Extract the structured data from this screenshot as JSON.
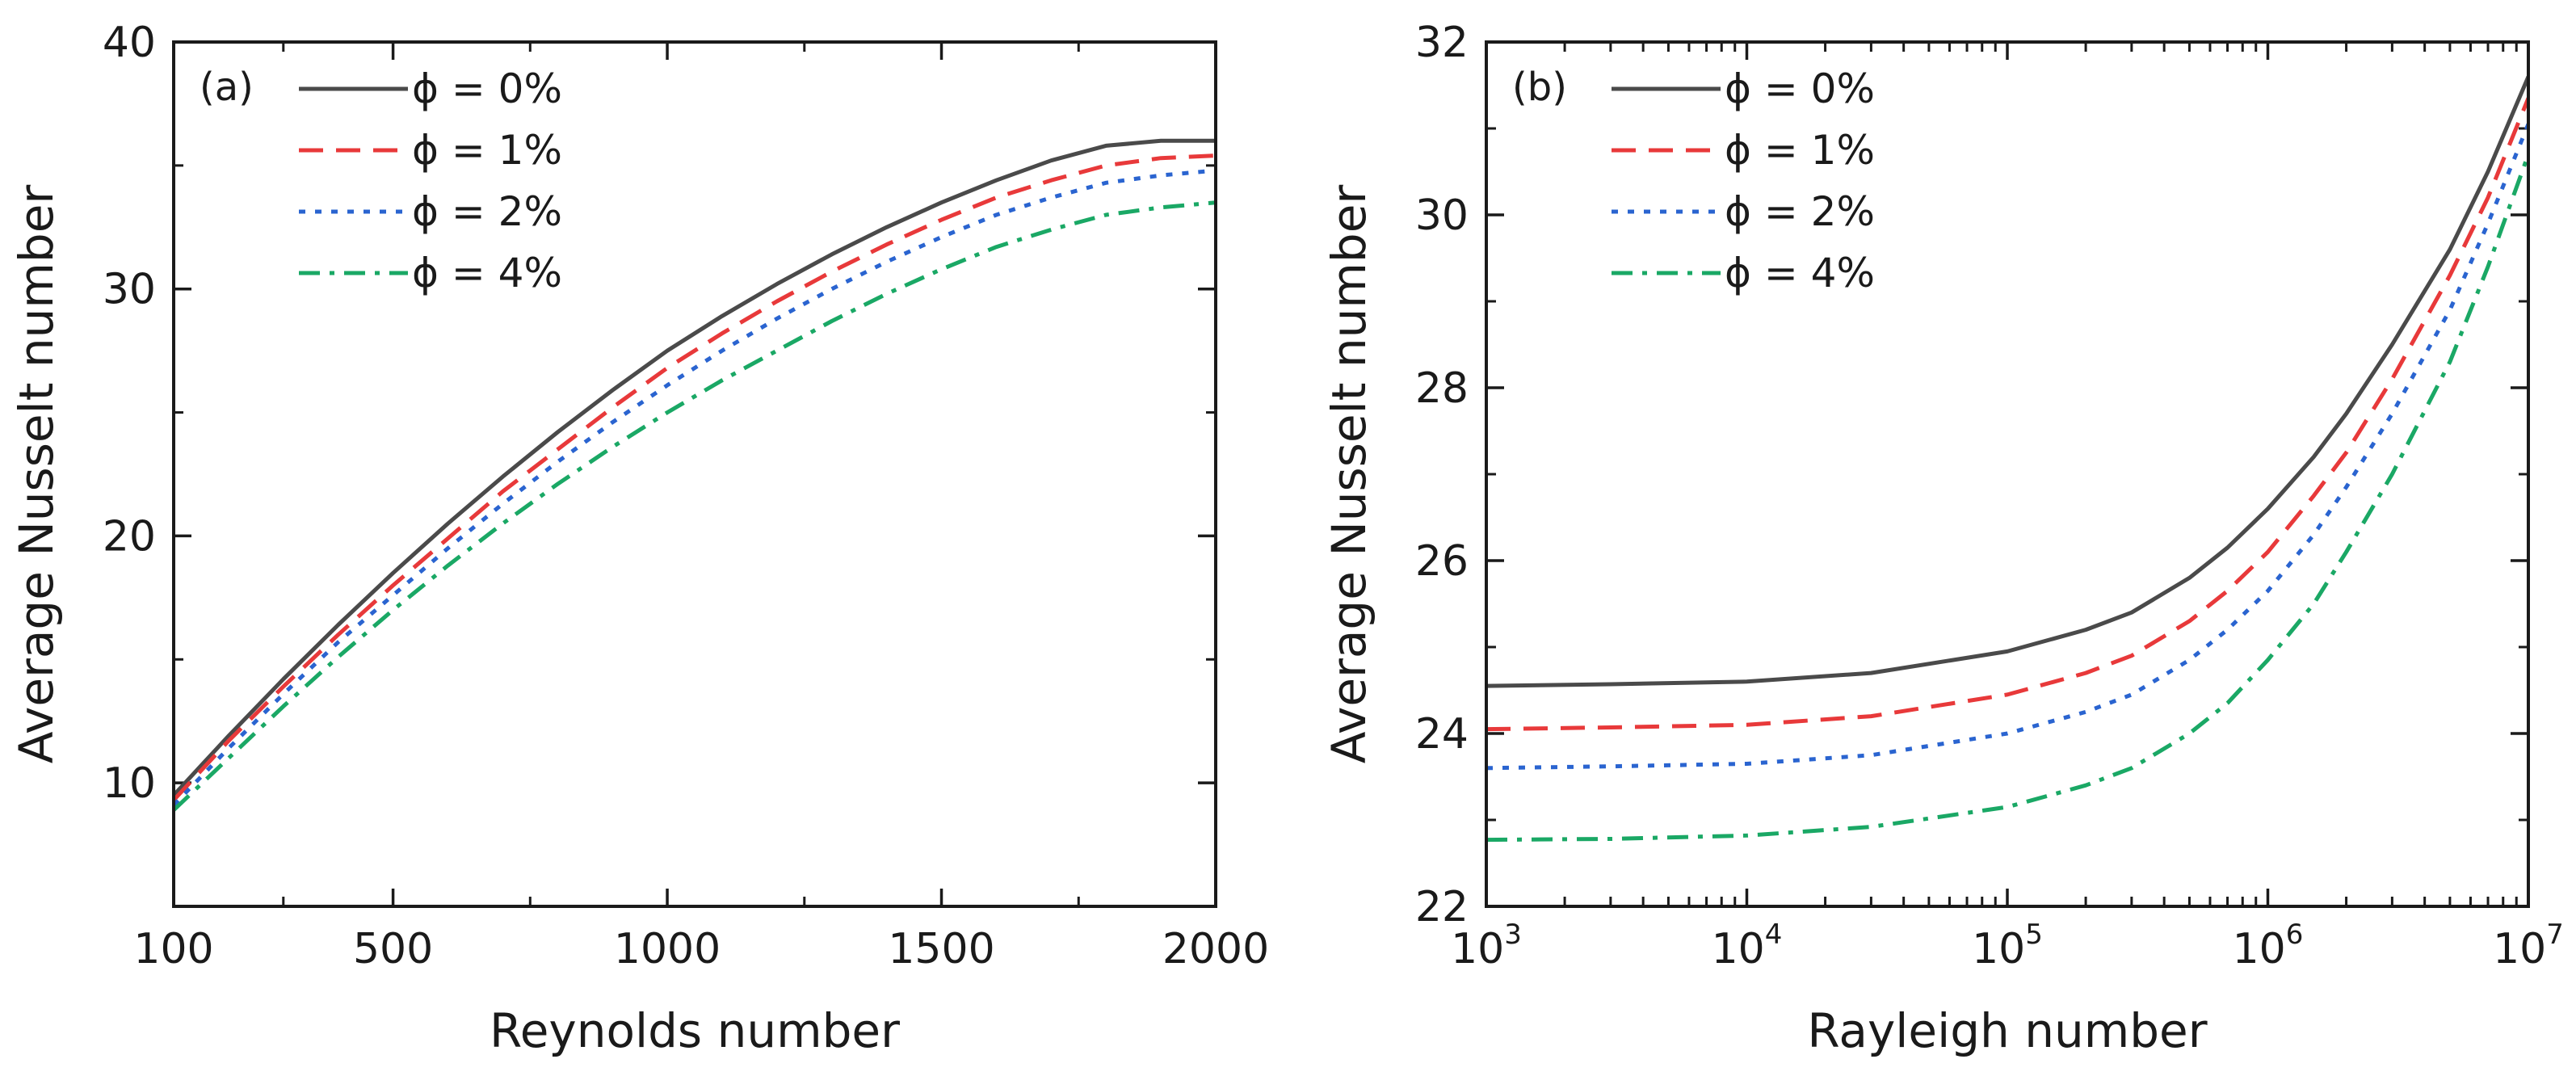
{
  "chart_data": [
    {
      "type": "line",
      "panel_label": "(a)",
      "xlabel": "Reynolds number",
      "ylabel": "Average Nusselt number",
      "xlim": [
        100,
        2000
      ],
      "ylim": [
        5,
        40
      ],
      "xticks": [
        100,
        500,
        1000,
        1500,
        2000
      ],
      "yticks": [
        10,
        20,
        30,
        40
      ],
      "xtick_labels": [
        "100",
        "500",
        "1000",
        "1500",
        "2000"
      ],
      "ytick_labels": [
        "10",
        "20",
        "30",
        "40"
      ],
      "legend_position": "top-left",
      "series": [
        {
          "name": "ϕ = 0%",
          "color": "#4a4a4a",
          "dash": "solid",
          "x": [
            100,
            200,
            300,
            400,
            500,
            600,
            700,
            800,
            900,
            1000,
            1100,
            1200,
            1300,
            1400,
            1500,
            1600,
            1700,
            1800,
            1900,
            2000
          ],
          "y": [
            9.5,
            11.9,
            14.2,
            16.4,
            18.5,
            20.5,
            22.4,
            24.2,
            25.9,
            27.5,
            28.9,
            30.2,
            31.4,
            32.5,
            33.5,
            34.4,
            35.2,
            35.8,
            36.0,
            36.0
          ]
        },
        {
          "name": "ϕ = 1%",
          "color": "#e8393a",
          "dash": "dashed",
          "x": [
            100,
            200,
            300,
            400,
            500,
            600,
            700,
            800,
            900,
            1000,
            1100,
            1200,
            1300,
            1400,
            1500,
            1600,
            1700,
            1800,
            1900,
            2000
          ],
          "y": [
            9.3,
            11.7,
            13.9,
            16.0,
            18.0,
            19.9,
            21.8,
            23.5,
            25.2,
            26.8,
            28.2,
            29.5,
            30.7,
            31.8,
            32.8,
            33.7,
            34.4,
            35.0,
            35.3,
            35.4
          ]
        },
        {
          "name": "ϕ = 2%",
          "color": "#2a64d0",
          "dash": "dotted",
          "x": [
            100,
            200,
            300,
            400,
            500,
            600,
            700,
            800,
            900,
            1000,
            1100,
            1200,
            1300,
            1400,
            1500,
            1600,
            1700,
            1800,
            1900,
            2000
          ],
          "y": [
            9.1,
            11.4,
            13.6,
            15.7,
            17.6,
            19.5,
            21.3,
            23.0,
            24.6,
            26.1,
            27.5,
            28.8,
            30.0,
            31.1,
            32.1,
            33.0,
            33.7,
            34.3,
            34.6,
            34.8
          ]
        },
        {
          "name": "ϕ = 4%",
          "color": "#1aa865",
          "dash": "dashdot",
          "x": [
            100,
            200,
            300,
            400,
            500,
            600,
            700,
            800,
            900,
            1000,
            1100,
            1200,
            1300,
            1400,
            1500,
            1600,
            1700,
            1800,
            1900,
            2000
          ],
          "y": [
            8.9,
            11.0,
            13.1,
            15.1,
            17.0,
            18.8,
            20.5,
            22.1,
            23.6,
            25.0,
            26.3,
            27.5,
            28.7,
            29.8,
            30.8,
            31.7,
            32.4,
            33.0,
            33.3,
            33.5
          ]
        }
      ]
    },
    {
      "type": "line",
      "panel_label": "(b)",
      "xlabel": "Rayleigh number",
      "ylabel": "Average Nusselt number",
      "xscale": "log",
      "xlim": [
        1000,
        10000000
      ],
      "ylim": [
        22,
        32
      ],
      "xticks": [
        1000,
        10000,
        100000,
        1000000,
        10000000
      ],
      "xtick_labels": [
        {
          "base": "10",
          "exp": "3"
        },
        {
          "base": "10",
          "exp": "4"
        },
        {
          "base": "10",
          "exp": "5"
        },
        {
          "base": "10",
          "exp": "6"
        },
        {
          "base": "10",
          "exp": "7"
        }
      ],
      "yticks": [
        22,
        24,
        26,
        28,
        30,
        32
      ],
      "ytick_labels": [
        "22",
        "24",
        "26",
        "28",
        "30",
        "32"
      ],
      "legend_position": "top-left",
      "series": [
        {
          "name": "ϕ = 0%",
          "color": "#4a4a4a",
          "dash": "solid",
          "x": [
            1000,
            3000,
            10000,
            30000,
            100000,
            200000,
            300000,
            500000,
            700000,
            1000000,
            1500000,
            2000000,
            3000000,
            5000000,
            7000000,
            10000000
          ],
          "y": [
            24.55,
            24.57,
            24.6,
            24.7,
            24.95,
            25.2,
            25.4,
            25.8,
            26.15,
            26.6,
            27.2,
            27.7,
            28.5,
            29.6,
            30.5,
            31.6
          ]
        },
        {
          "name": "ϕ = 1%",
          "color": "#e8393a",
          "dash": "dashed",
          "x": [
            1000,
            3000,
            10000,
            30000,
            100000,
            200000,
            300000,
            500000,
            700000,
            1000000,
            1500000,
            2000000,
            3000000,
            5000000,
            7000000,
            10000000
          ],
          "y": [
            24.05,
            24.07,
            24.1,
            24.2,
            24.45,
            24.7,
            24.9,
            25.3,
            25.65,
            26.1,
            26.75,
            27.25,
            28.1,
            29.3,
            30.2,
            31.35
          ]
        },
        {
          "name": "ϕ = 2%",
          "color": "#2a64d0",
          "dash": "dotted",
          "x": [
            1000,
            3000,
            10000,
            30000,
            100000,
            200000,
            300000,
            500000,
            700000,
            1000000,
            1500000,
            2000000,
            3000000,
            5000000,
            7000000,
            10000000
          ],
          "y": [
            23.6,
            23.62,
            23.65,
            23.75,
            24.0,
            24.25,
            24.45,
            24.85,
            25.2,
            25.65,
            26.3,
            26.85,
            27.7,
            28.9,
            29.9,
            31.05
          ]
        },
        {
          "name": "ϕ = 4%",
          "color": "#1aa865",
          "dash": "dashdot",
          "x": [
            1000,
            3000,
            10000,
            30000,
            100000,
            200000,
            300000,
            500000,
            700000,
            1000000,
            1500000,
            2000000,
            3000000,
            5000000,
            7000000,
            10000000
          ],
          "y": [
            22.77,
            22.78,
            22.82,
            22.92,
            23.15,
            23.4,
            23.6,
            24.0,
            24.35,
            24.85,
            25.5,
            26.1,
            27.0,
            28.3,
            29.4,
            30.7
          ]
        }
      ]
    }
  ]
}
